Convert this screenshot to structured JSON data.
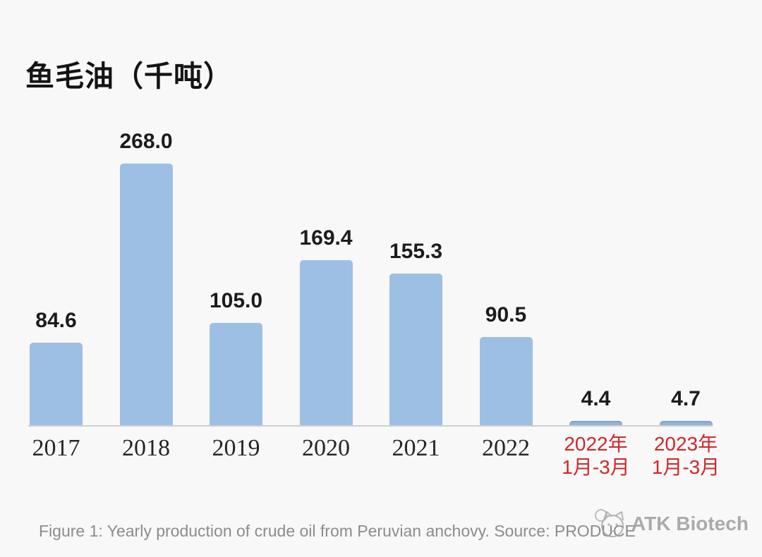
{
  "title": "鱼毛油（千吨）",
  "caption": "Figure 1: Yearly production of crude oil from Peruvian anchovy. Source: PRODUCE",
  "watermark": {
    "name": "ATK Biotech"
  },
  "chart_data": {
    "type": "bar",
    "title": "鱼毛油（千吨）",
    "xlabel": "",
    "ylabel": "",
    "ylim": [
      0,
      320
    ],
    "grid": false,
    "legend": "none",
    "bar_color": "#9dbfe4",
    "small_bar_color": "#93b5da",
    "value_label_color": "#1c1c1c",
    "year_label_color": "#262626",
    "period_label_color": "#d02828",
    "axis_line_color": "#cfcfcf",
    "categories": [
      "2017",
      "2018",
      "2019",
      "2020",
      "2021",
      "2022",
      "2022年 1月-3月",
      "2023年 1月-3月"
    ],
    "values": [
      84.6,
      268.0,
      105.0,
      169.4,
      155.3,
      90.5,
      4.4,
      4.7
    ],
    "bars": [
      {
        "value": 84.6,
        "label": "84.6",
        "category_lines": [
          "2017"
        ],
        "style": "year"
      },
      {
        "value": 268.0,
        "label": "268.0",
        "category_lines": [
          "2018"
        ],
        "style": "year"
      },
      {
        "value": 105.0,
        "label": "105.0",
        "category_lines": [
          "2019"
        ],
        "style": "year"
      },
      {
        "value": 169.4,
        "label": "169.4",
        "category_lines": [
          "2020"
        ],
        "style": "year"
      },
      {
        "value": 155.3,
        "label": "155.3",
        "category_lines": [
          "2021"
        ],
        "style": "year"
      },
      {
        "value": 90.5,
        "label": "90.5",
        "category_lines": [
          "2022"
        ],
        "style": "year"
      },
      {
        "value": 4.4,
        "label": "4.4",
        "category_lines": [
          "2022年",
          "1月-3月"
        ],
        "style": "period"
      },
      {
        "value": 4.7,
        "label": "4.7",
        "category_lines": [
          "2023年",
          "1月-3月"
        ],
        "style": "period"
      }
    ]
  }
}
